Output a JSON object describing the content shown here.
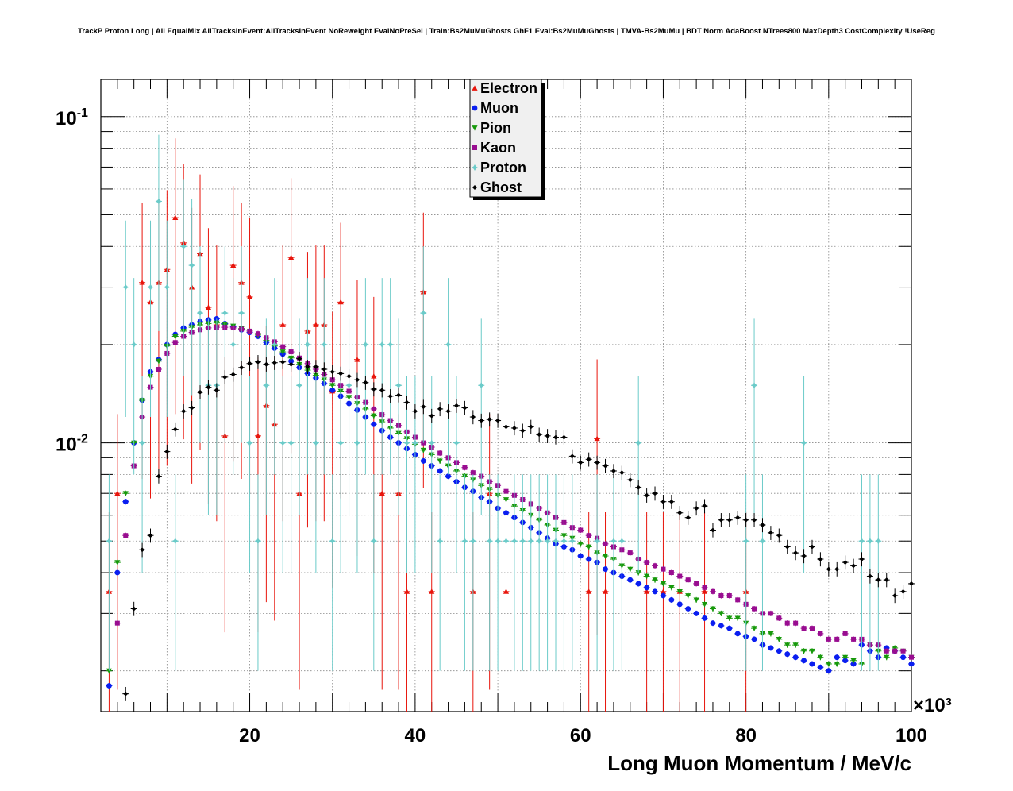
{
  "chart_data": {
    "type": "scatter",
    "title": "TrackP Proton Long | All EqualMix AllTracksInEvent:AllTracksInEvent NoReweight EvalNoPreSel | Train:Bs2MuMuGhosts GhF1 Eval:Bs2MuMuGhosts | TMVA-Bs2MuMu | BDT Norm AdaBoost NTrees800 MaxDepth3 CostComplexity !UseReg",
    "xlabel": "Long Muon Momentum / MeV/c",
    "x_multiplier": "×10³",
    "xlim": [
      2,
      100
    ],
    "ylim": [
      0.0015,
      0.13
    ],
    "yscale": "log",
    "grid": true,
    "legend_position": "top-center",
    "x_ticks": [
      20,
      40,
      60,
      80,
      100
    ],
    "y_ticks": [
      {
        "value": 0.01,
        "base": "10",
        "exp": "-2"
      },
      {
        "value": 0.1,
        "base": "10",
        "exp": "-1"
      }
    ],
    "x": [
      3,
      4,
      5,
      6,
      7,
      8,
      9,
      10,
      11,
      12,
      13,
      14,
      15,
      16,
      17,
      18,
      19,
      20,
      21,
      22,
      23,
      24,
      25,
      26,
      27,
      28,
      29,
      30,
      31,
      32,
      33,
      34,
      35,
      36,
      37,
      38,
      39,
      40,
      41,
      42,
      43,
      44,
      45,
      46,
      47,
      48,
      49,
      50,
      51,
      52,
      53,
      54,
      55,
      56,
      57,
      58,
      59,
      60,
      61,
      62,
      63,
      64,
      65,
      66,
      67,
      68,
      69,
      70,
      71,
      72,
      73,
      74,
      75,
      76,
      77,
      78,
      79,
      80,
      81,
      82,
      83,
      84,
      85,
      86,
      87,
      88,
      89,
      90,
      91,
      92,
      93,
      94,
      95,
      96,
      97,
      98,
      99,
      100
    ],
    "series": [
      {
        "name": "Electron",
        "color": "#e8150c",
        "marker": "triangle-up",
        "values": [
          0.0035,
          0.007,
          0.0,
          0.0,
          0.031,
          0.027,
          0.031,
          0.034,
          0.049,
          0.041,
          0.03,
          0.038,
          0.026,
          0.023,
          0.0105,
          0.035,
          0.031,
          0.028,
          0.0105,
          0.013,
          0.0114,
          0.023,
          0.037,
          0.007,
          0.022,
          0.023,
          0.023,
          0.0144,
          0.027,
          0.0,
          0.018,
          0.0,
          0.016,
          0.007,
          0.0,
          0.007,
          0.0035,
          0.0,
          0.029,
          0.0035,
          0.0,
          0.0,
          0.0,
          0.0,
          0.0035,
          0.0,
          0.007,
          0.0,
          0.0035,
          0.0,
          0.0,
          0.0,
          0.0,
          0.0,
          0.0,
          0.0,
          0.0,
          0.0,
          0.0035,
          0.0103,
          0.0035,
          0.0,
          0.0,
          0.0,
          0.0,
          0.0035,
          0.0,
          0.0035,
          0.0,
          0.0035,
          0.0,
          0.0,
          0.0035,
          0.0,
          0.0,
          0.0,
          0.0,
          0.0035,
          0.0,
          0.0,
          0.0,
          0.0,
          0.0,
          0.0,
          0.0,
          0.0,
          0.0,
          0.0,
          0.0,
          0.0,
          0.0,
          0.0,
          0.0,
          0.0,
          0.0,
          0.0,
          0.0,
          0.0
        ]
      },
      {
        "name": "Muon",
        "color": "#0a1ef0",
        "marker": "circle",
        "values": [
          0.0018,
          0.004,
          0.0066,
          0.01,
          0.0135,
          0.0165,
          0.018,
          0.02,
          0.0215,
          0.0225,
          0.023,
          0.0235,
          0.0238,
          0.024,
          0.0232,
          0.0227,
          0.0222,
          0.0218,
          0.0212,
          0.0203,
          0.0195,
          0.0187,
          0.0178,
          0.017,
          0.0163,
          0.0158,
          0.0152,
          0.0145,
          0.0139,
          0.0132,
          0.0126,
          0.012,
          0.0114,
          0.0109,
          0.0104,
          0.01,
          0.0096,
          0.0092,
          0.0088,
          0.0085,
          0.0082,
          0.0079,
          0.0076,
          0.0073,
          0.0071,
          0.0068,
          0.0066,
          0.0063,
          0.0061,
          0.0059,
          0.0057,
          0.0055,
          0.0053,
          0.0051,
          0.0049,
          0.0048,
          0.0047,
          0.0045,
          0.0044,
          0.0043,
          0.0041,
          0.004,
          0.0039,
          0.0038,
          0.0037,
          0.0036,
          0.0035,
          0.0034,
          0.0033,
          0.0032,
          0.0031,
          0.003,
          0.0029,
          0.0028,
          0.00275,
          0.0027,
          0.0026,
          0.00255,
          0.0025,
          0.0024,
          0.00235,
          0.0023,
          0.00225,
          0.0022,
          0.00215,
          0.0021,
          0.00205,
          0.002,
          0.0022,
          0.00215,
          0.0021,
          0.0024,
          0.0023,
          0.0022,
          0.00235,
          0.0023,
          0.0022,
          0.0021
        ]
      },
      {
        "name": "Pion",
        "color": "#17990b",
        "marker": "triangle-down",
        "values": [
          0.002,
          0.0043,
          0.007,
          0.01,
          0.0135,
          0.016,
          0.0178,
          0.0198,
          0.0212,
          0.022,
          0.0226,
          0.023,
          0.0232,
          0.0233,
          0.0231,
          0.0228,
          0.0224,
          0.022,
          0.0214,
          0.0206,
          0.0198,
          0.019,
          0.0182,
          0.0174,
          0.0167,
          0.0161,
          0.0156,
          0.015,
          0.0144,
          0.0138,
          0.0132,
          0.0127,
          0.0121,
          0.0116,
          0.0111,
          0.0107,
          0.0103,
          0.0099,
          0.0095,
          0.0092,
          0.0088,
          0.0085,
          0.0082,
          0.0079,
          0.0077,
          0.0074,
          0.0072,
          0.0069,
          0.0067,
          0.0064,
          0.0062,
          0.006,
          0.0058,
          0.0056,
          0.0054,
          0.0052,
          0.0051,
          0.0049,
          0.0048,
          0.0046,
          0.0045,
          0.0044,
          0.0042,
          0.0041,
          0.004,
          0.0039,
          0.0038,
          0.0037,
          0.0036,
          0.0035,
          0.0034,
          0.0033,
          0.0032,
          0.0031,
          0.003,
          0.0029,
          0.0029,
          0.0028,
          0.0027,
          0.0026,
          0.0026,
          0.0025,
          0.0024,
          0.0024,
          0.0023,
          0.0023,
          0.0022,
          0.0021,
          0.0021,
          0.0022,
          0.00215,
          0.0021,
          0.0024,
          0.0023,
          0.0022,
          0.00235,
          0.0023,
          0.0022
        ]
      },
      {
        "name": "Kaon",
        "color": "#990d90",
        "marker": "square",
        "values": [
          0.0,
          0.0028,
          0.0052,
          0.0085,
          0.012,
          0.0148,
          0.0168,
          0.0188,
          0.0203,
          0.0212,
          0.0218,
          0.0222,
          0.0225,
          0.0226,
          0.0226,
          0.0225,
          0.0223,
          0.022,
          0.0216,
          0.021,
          0.0204,
          0.0197,
          0.019,
          0.0182,
          0.0175,
          0.0168,
          0.0162,
          0.0156,
          0.015,
          0.0144,
          0.0138,
          0.0133,
          0.0127,
          0.0122,
          0.0117,
          0.0113,
          0.0108,
          0.0104,
          0.01,
          0.0097,
          0.0093,
          0.009,
          0.0087,
          0.0084,
          0.0081,
          0.0079,
          0.0076,
          0.0074,
          0.0071,
          0.0069,
          0.0067,
          0.0065,
          0.0063,
          0.0061,
          0.0059,
          0.0057,
          0.0055,
          0.0054,
          0.0052,
          0.0051,
          0.0049,
          0.0048,
          0.0047,
          0.0046,
          0.0044,
          0.0043,
          0.0042,
          0.0041,
          0.004,
          0.0039,
          0.0038,
          0.0037,
          0.0036,
          0.0035,
          0.0034,
          0.0034,
          0.0033,
          0.0032,
          0.0031,
          0.003,
          0.003,
          0.0029,
          0.0028,
          0.0028,
          0.0027,
          0.0027,
          0.0026,
          0.0025,
          0.0025,
          0.0026,
          0.0025,
          0.0025,
          0.0024,
          0.0024,
          0.0023,
          0.0023,
          0.0023,
          0.0022
        ]
      },
      {
        "name": "Proton",
        "color": "#6bcbc9",
        "marker": "star",
        "values": [
          0.005,
          0.0,
          0.03,
          0.02,
          0.01,
          0.03,
          0.055,
          0.03,
          0.005,
          0.04,
          0.035,
          0.025,
          0.015,
          0.015,
          0.025,
          0.02,
          0.025,
          0.01,
          0.005,
          0.015,
          0.02,
          0.01,
          0.01,
          0.015,
          0.02,
          0.01,
          0.02,
          0.005,
          0.01,
          0.015,
          0.01,
          0.02,
          0.005,
          0.02,
          0.02,
          0.015,
          0.01,
          0.01,
          0.025,
          0.01,
          0.005,
          0.02,
          0.01,
          0.005,
          0.005,
          0.015,
          0.005,
          0.005,
          0.005,
          0.005,
          0.005,
          0.005,
          0.005,
          0.005,
          0.005,
          0.005,
          0.005,
          0.0,
          0.0,
          0.005,
          0.0,
          0.005,
          0.005,
          0.0,
          0.01,
          0.0,
          0.0,
          0.0,
          0.0,
          0.0,
          0.0,
          0.0,
          0.0,
          0.0,
          0.0,
          0.0,
          0.0,
          0.005,
          0.015,
          0.005,
          0.0,
          0.0,
          0.0,
          0.0,
          0.01,
          0.0,
          0.0,
          0.0,
          0.0,
          0.0,
          0.0,
          0.005,
          0.005,
          0.005,
          0.0,
          0.0,
          0.0,
          0.0
        ]
      },
      {
        "name": "Ghost",
        "color": "#000000",
        "marker": "cross",
        "values": [
          0.0,
          0.0,
          0.0017,
          0.0031,
          0.0047,
          0.0052,
          0.0079,
          0.0094,
          0.011,
          0.0125,
          0.0128,
          0.0143,
          0.0148,
          0.0145,
          0.0159,
          0.0162,
          0.017,
          0.0175,
          0.0177,
          0.0174,
          0.0176,
          0.0177,
          0.0174,
          0.0181,
          0.0171,
          0.0171,
          0.0168,
          0.0165,
          0.0163,
          0.016,
          0.0156,
          0.0153,
          0.0146,
          0.0145,
          0.0139,
          0.014,
          0.0133,
          0.0125,
          0.0129,
          0.0121,
          0.0127,
          0.0125,
          0.013,
          0.0128,
          0.012,
          0.0117,
          0.0118,
          0.0117,
          0.0112,
          0.0111,
          0.0109,
          0.0112,
          0.0106,
          0.0105,
          0.0104,
          0.0104,
          0.0091,
          0.0087,
          0.0089,
          0.0087,
          0.0085,
          0.0082,
          0.0081,
          0.0077,
          0.0073,
          0.0069,
          0.007,
          0.0066,
          0.0066,
          0.0061,
          0.0059,
          0.0063,
          0.0064,
          0.0054,
          0.0058,
          0.0058,
          0.0059,
          0.0058,
          0.0058,
          0.0056,
          0.0053,
          0.0052,
          0.0048,
          0.0046,
          0.0045,
          0.0048,
          0.0044,
          0.0041,
          0.0041,
          0.0043,
          0.0042,
          0.0044,
          0.0039,
          0.0038,
          0.0038,
          0.0034,
          0.0035,
          0.0037
        ]
      }
    ]
  }
}
